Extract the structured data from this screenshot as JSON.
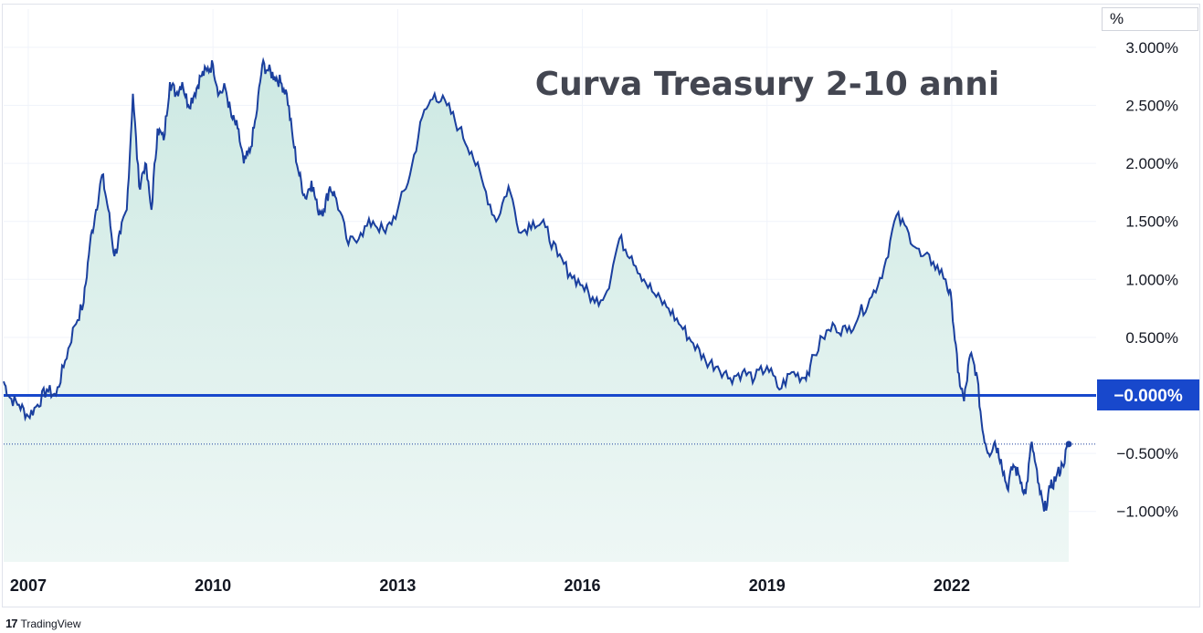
{
  "unit_label": "%",
  "branding": {
    "logo_icon": "tradingview-logo-icon",
    "name": "TradingView"
  },
  "chart_data": {
    "type": "area",
    "title": "Curva Treasury 2-10 anni",
    "ylim": [
      -1.0,
      3.0
    ],
    "y_tick_labels": [
      "3.000%",
      "2.500%",
      "2.000%",
      "1.500%",
      "1.000%",
      "0.500%",
      "−0.500%",
      "−1.000%"
    ],
    "y_tick_values": [
      3.0,
      2.5,
      2.0,
      1.5,
      1.0,
      0.5,
      -0.5,
      -1.0
    ],
    "x_tick_labels": [
      "2007",
      "2010",
      "2013",
      "2016",
      "2019",
      "2022"
    ],
    "x_tick_values": [
      2007,
      2010,
      2013,
      2016,
      2019,
      2022
    ],
    "x_range": [
      2006.6,
      2024.0
    ],
    "reference_line": {
      "value": 0.0,
      "label": "−0.000%",
      "color": "#1848cc"
    },
    "last_value": -0.42,
    "colors": {
      "line": "#1a3f9e",
      "fill_top": "#cde9e3",
      "fill_bottom": "#eef7f5",
      "grid": "#f0f3fa"
    },
    "grid": true,
    "series": [
      {
        "x": [
          2006.6,
          2006.7,
          2006.85,
          2007.0,
          2007.15,
          2007.3,
          2007.45,
          2007.6,
          2007.75,
          2007.9,
          2008.0,
          2008.1,
          2008.2,
          2008.3,
          2008.4,
          2008.5,
          2008.6,
          2008.7,
          2008.8,
          2008.9,
          2009.0,
          2009.1,
          2009.2,
          2009.3,
          2009.4,
          2009.5,
          2009.6,
          2009.7,
          2009.8,
          2009.9,
          2010.0,
          2010.1,
          2010.2,
          2010.3,
          2010.4,
          2010.5,
          2010.6,
          2010.7,
          2010.8,
          2010.9,
          2011.0,
          2011.1,
          2011.2,
          2011.3,
          2011.4,
          2011.5,
          2011.6,
          2011.7,
          2011.8,
          2011.9,
          2012.0,
          2012.2,
          2012.4,
          2012.6,
          2012.8,
          2013.0,
          2013.2,
          2013.4,
          2013.6,
          2013.8,
          2014.0,
          2014.2,
          2014.4,
          2014.6,
          2014.8,
          2015.0,
          2015.2,
          2015.4,
          2015.6,
          2015.8,
          2016.0,
          2016.2,
          2016.4,
          2016.6,
          2016.8,
          2017.0,
          2017.2,
          2017.4,
          2017.6,
          2017.8,
          2018.0,
          2018.2,
          2018.4,
          2018.6,
          2018.8,
          2019.0,
          2019.2,
          2019.4,
          2019.6,
          2019.7,
          2019.9,
          2020.1,
          2020.3,
          2020.5,
          2020.7,
          2020.9,
          2021.1,
          2021.3,
          2021.5,
          2021.7,
          2021.9,
          2022.0,
          2022.1,
          2022.2,
          2022.3,
          2022.4,
          2022.5,
          2022.6,
          2022.7,
          2022.8,
          2022.9,
          2023.0,
          2023.1,
          2023.2,
          2023.3,
          2023.4,
          2023.5,
          2023.6,
          2023.7,
          2023.8,
          2023.9
        ],
        "y": [
          0.12,
          -0.02,
          -0.08,
          -0.18,
          -0.08,
          0.05,
          0.0,
          0.3,
          0.6,
          0.8,
          1.3,
          1.6,
          1.9,
          1.6,
          1.2,
          1.4,
          1.6,
          2.6,
          1.8,
          2.0,
          1.6,
          2.3,
          2.2,
          2.7,
          2.6,
          2.7,
          2.5,
          2.6,
          2.75,
          2.8,
          2.85,
          2.6,
          2.65,
          2.4,
          2.3,
          2.0,
          2.1,
          2.4,
          2.85,
          2.8,
          2.75,
          2.7,
          2.6,
          2.2,
          1.9,
          1.7,
          1.85,
          1.6,
          1.6,
          1.8,
          1.7,
          1.3,
          1.4,
          1.5,
          1.4,
          1.6,
          1.9,
          2.4,
          2.6,
          2.5,
          2.3,
          2.1,
          1.8,
          1.5,
          1.8,
          1.4,
          1.5,
          1.45,
          1.2,
          1.05,
          0.95,
          0.8,
          0.9,
          1.35,
          1.2,
          1.0,
          0.85,
          0.75,
          0.6,
          0.45,
          0.3,
          0.25,
          0.15,
          0.2,
          0.15,
          0.25,
          0.05,
          0.2,
          0.15,
          0.25,
          0.5,
          0.6,
          0.55,
          0.7,
          0.85,
          1.1,
          1.55,
          1.4,
          1.2,
          1.15,
          1.0,
          0.8,
          0.2,
          -0.05,
          0.35,
          0.2,
          -0.3,
          -0.5,
          -0.4,
          -0.55,
          -0.8,
          -0.6,
          -0.7,
          -0.85,
          -0.4,
          -0.75,
          -1.0,
          -0.8,
          -0.7,
          -0.6,
          -0.42
        ]
      }
    ]
  }
}
